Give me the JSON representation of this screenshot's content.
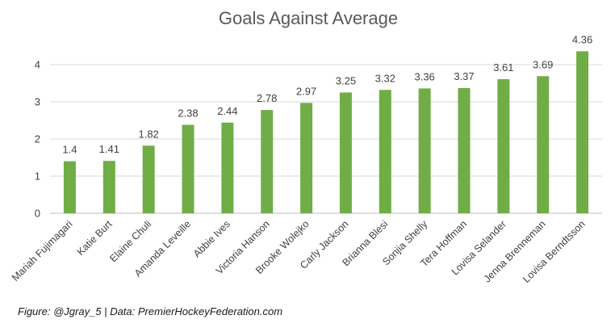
{
  "chart_data": {
    "type": "bar",
    "title": "Goals Against Average",
    "xlabel": "",
    "ylabel": "",
    "ylim": [
      0,
      4.5
    ],
    "yticks": [
      0,
      1,
      2,
      3,
      4
    ],
    "grid": true,
    "legend": "none",
    "bar_color": "#70ad47",
    "categories": [
      "Mariah Fujimagari",
      "Katie Burt",
      "Elaine Chuli",
      "Amanda Leveille",
      "Abbie Ives",
      "Victoria Hanson",
      "Brooke Wolejko",
      "Carly Jackson",
      "Brianna Blesi",
      "Sonjia Shelly",
      "Tera Hoffman",
      "Lovisa Selander",
      "Jenna Brenneman",
      "Lovisa Berndtsson"
    ],
    "values": [
      1.4,
      1.41,
      1.82,
      2.38,
      2.44,
      2.78,
      2.97,
      3.25,
      3.32,
      3.36,
      3.37,
      3.61,
      3.69,
      4.36
    ],
    "data_labels": [
      "1.4",
      "1.41",
      "1.82",
      "2.38",
      "2.44",
      "2.78",
      "2.97",
      "3.25",
      "3.32",
      "3.36",
      "3.37",
      "3.61",
      "3.69",
      "4.36"
    ]
  },
  "caption": {
    "figure_prefix": "Figure:",
    "author": "@Jgray_5",
    "separator": "|",
    "data_prefix": "Data:",
    "source": "PremierHockeyFederation.com"
  }
}
